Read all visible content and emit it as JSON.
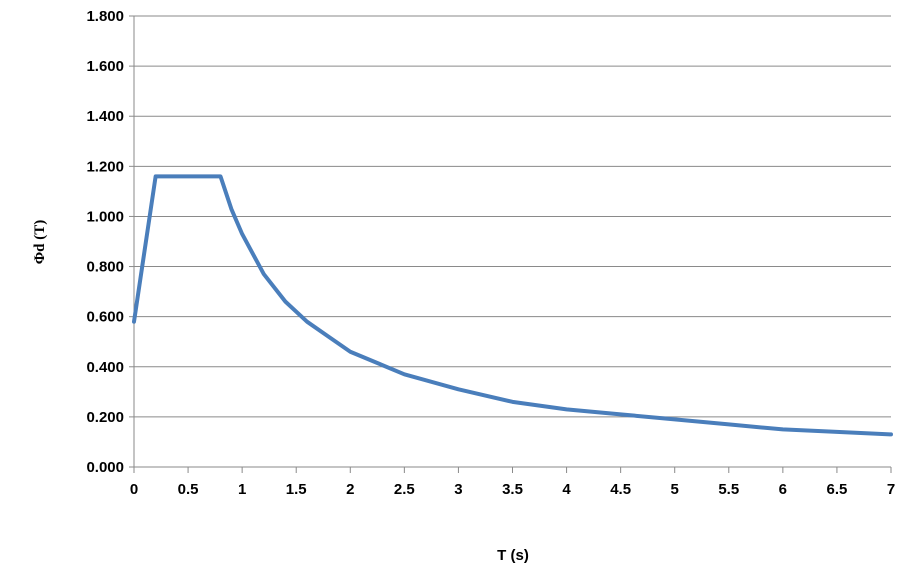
{
  "chart_data": {
    "type": "line",
    "title": "",
    "xlabel": "T (s)",
    "ylabel": "Φd (T)",
    "xlim": [
      0,
      7
    ],
    "ylim": [
      0,
      1.8
    ],
    "x_ticks": [
      "0",
      "0.5",
      "1",
      "1.5",
      "2",
      "2.5",
      "3",
      "3.5",
      "4",
      "4.5",
      "5",
      "5.5",
      "6",
      "6.5",
      "7"
    ],
    "y_ticks": [
      "0.000",
      "0.200",
      "0.400",
      "0.600",
      "0.800",
      "1.000",
      "1.200",
      "1.400",
      "1.600",
      "1.800"
    ],
    "grid": "horizontal",
    "legend": "none",
    "series": [
      {
        "color": "#4a7ebb",
        "x": [
          0,
          0.2,
          0.8,
          0.9,
          1.0,
          1.2,
          1.4,
          1.6,
          1.8,
          2.0,
          2.5,
          3.0,
          3.5,
          4.0,
          4.5,
          5.0,
          5.5,
          6.0,
          6.5,
          7.0
        ],
        "y": [
          0.58,
          1.16,
          1.16,
          1.03,
          0.93,
          0.77,
          0.66,
          0.58,
          0.52,
          0.46,
          0.37,
          0.31,
          0.26,
          0.23,
          0.21,
          0.19,
          0.17,
          0.15,
          0.14,
          0.13
        ]
      }
    ]
  }
}
